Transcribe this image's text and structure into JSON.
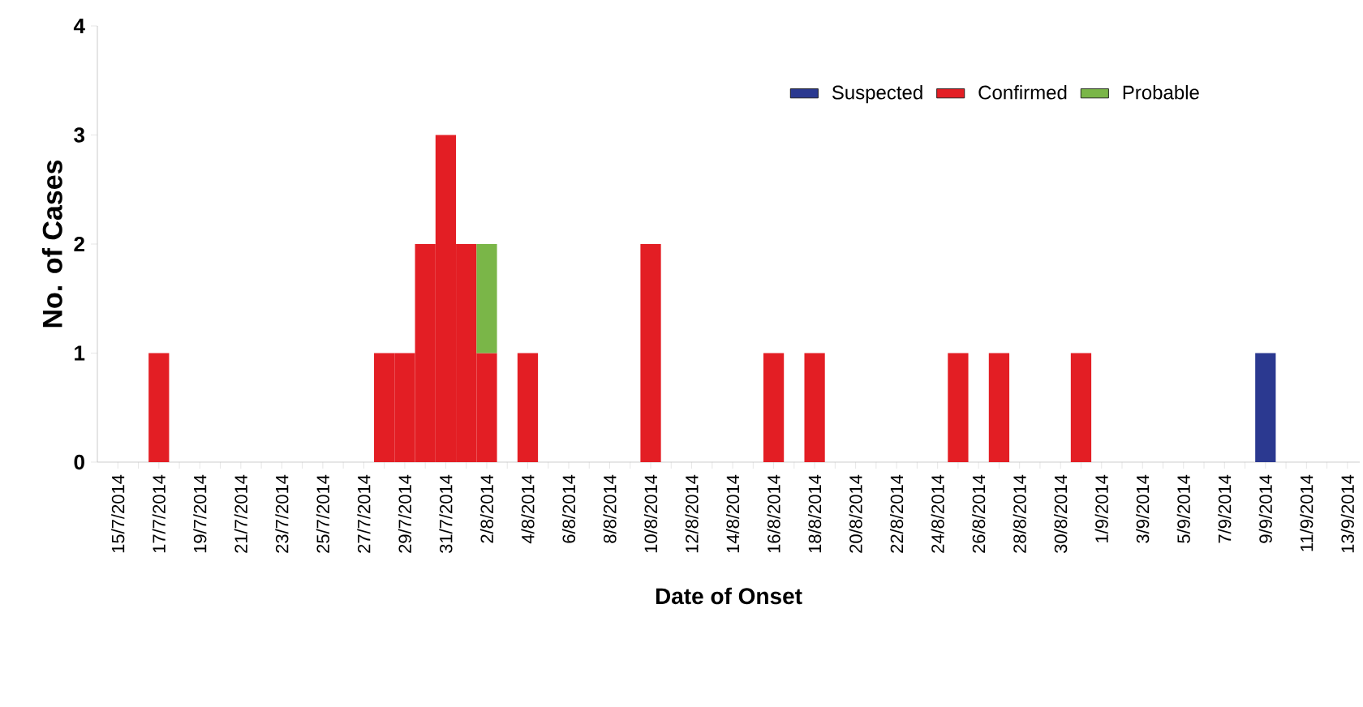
{
  "chart_data": {
    "type": "bar",
    "stacked": true,
    "xlabel": "Date of Onset",
    "ylabel": "No. of Cases",
    "categories": [
      "15/7/2014",
      null,
      "17/7/2014",
      null,
      "19/7/2014",
      null,
      "21/7/2014",
      null,
      "23/7/2014",
      null,
      "25/7/2014",
      null,
      "27/7/2014",
      null,
      "29/7/2014",
      null,
      "31/7/2014",
      null,
      "2/8/2014",
      null,
      "4/8/2014",
      null,
      "6/8/2014",
      null,
      "8/8/2014",
      null,
      "10/8/2014",
      null,
      "12/8/2014",
      null,
      "14/8/2014",
      null,
      "16/8/2014",
      null,
      "18/8/2014",
      null,
      "20/8/2014",
      null,
      "22/8/2014",
      null,
      "24/8/2014",
      null,
      "26/8/2014",
      null,
      "28/8/2014",
      null,
      "30/8/2014",
      null,
      "1/9/2014",
      null,
      "3/9/2014",
      null,
      "5/9/2014",
      null,
      "7/9/2014",
      null,
      "9/9/2014",
      null,
      "11/9/2014",
      null,
      "13/9/2014"
    ],
    "series": [
      {
        "name": "Suspected",
        "color": "#2b3990",
        "values": [
          0,
          0,
          0,
          0,
          0,
          0,
          0,
          0,
          0,
          0,
          0,
          0,
          0,
          0,
          0,
          0,
          0,
          0,
          0,
          0,
          0,
          0,
          0,
          0,
          0,
          0,
          0,
          0,
          0,
          0,
          0,
          0,
          0,
          0,
          0,
          0,
          0,
          0,
          0,
          0,
          0,
          0,
          0,
          0,
          0,
          0,
          0,
          0,
          0,
          0,
          0,
          0,
          0,
          0,
          0,
          0,
          1,
          0,
          0,
          0,
          0
        ]
      },
      {
        "name": "Confirmed",
        "color": "#e31e24",
        "values": [
          0,
          0,
          1,
          0,
          0,
          0,
          0,
          0,
          0,
          0,
          0,
          0,
          0,
          1,
          1,
          2,
          3,
          2,
          1,
          0,
          1,
          0,
          0,
          0,
          0,
          0,
          2,
          0,
          0,
          0,
          0,
          0,
          1,
          0,
          1,
          0,
          0,
          0,
          0,
          0,
          0,
          1,
          0,
          1,
          0,
          0,
          0,
          1,
          0,
          0,
          0,
          0,
          0,
          0,
          0,
          0,
          0,
          0,
          0,
          0,
          0
        ]
      },
      {
        "name": "Probable",
        "color": "#7ab648",
        "values": [
          0,
          0,
          0,
          0,
          0,
          0,
          0,
          0,
          0,
          0,
          0,
          0,
          0,
          0,
          0,
          0,
          0,
          0,
          1,
          0,
          0,
          0,
          0,
          0,
          0,
          0,
          0,
          0,
          0,
          0,
          0,
          0,
          0,
          0,
          0,
          0,
          0,
          0,
          0,
          0,
          0,
          0,
          0,
          0,
          0,
          0,
          0,
          0,
          0,
          0,
          0,
          0,
          0,
          0,
          0,
          0,
          0,
          0,
          0,
          0,
          0
        ]
      }
    ],
    "ylim": [
      0,
      4
    ],
    "yticks": [
      0,
      1,
      2,
      3,
      4
    ],
    "legend": "top right"
  }
}
